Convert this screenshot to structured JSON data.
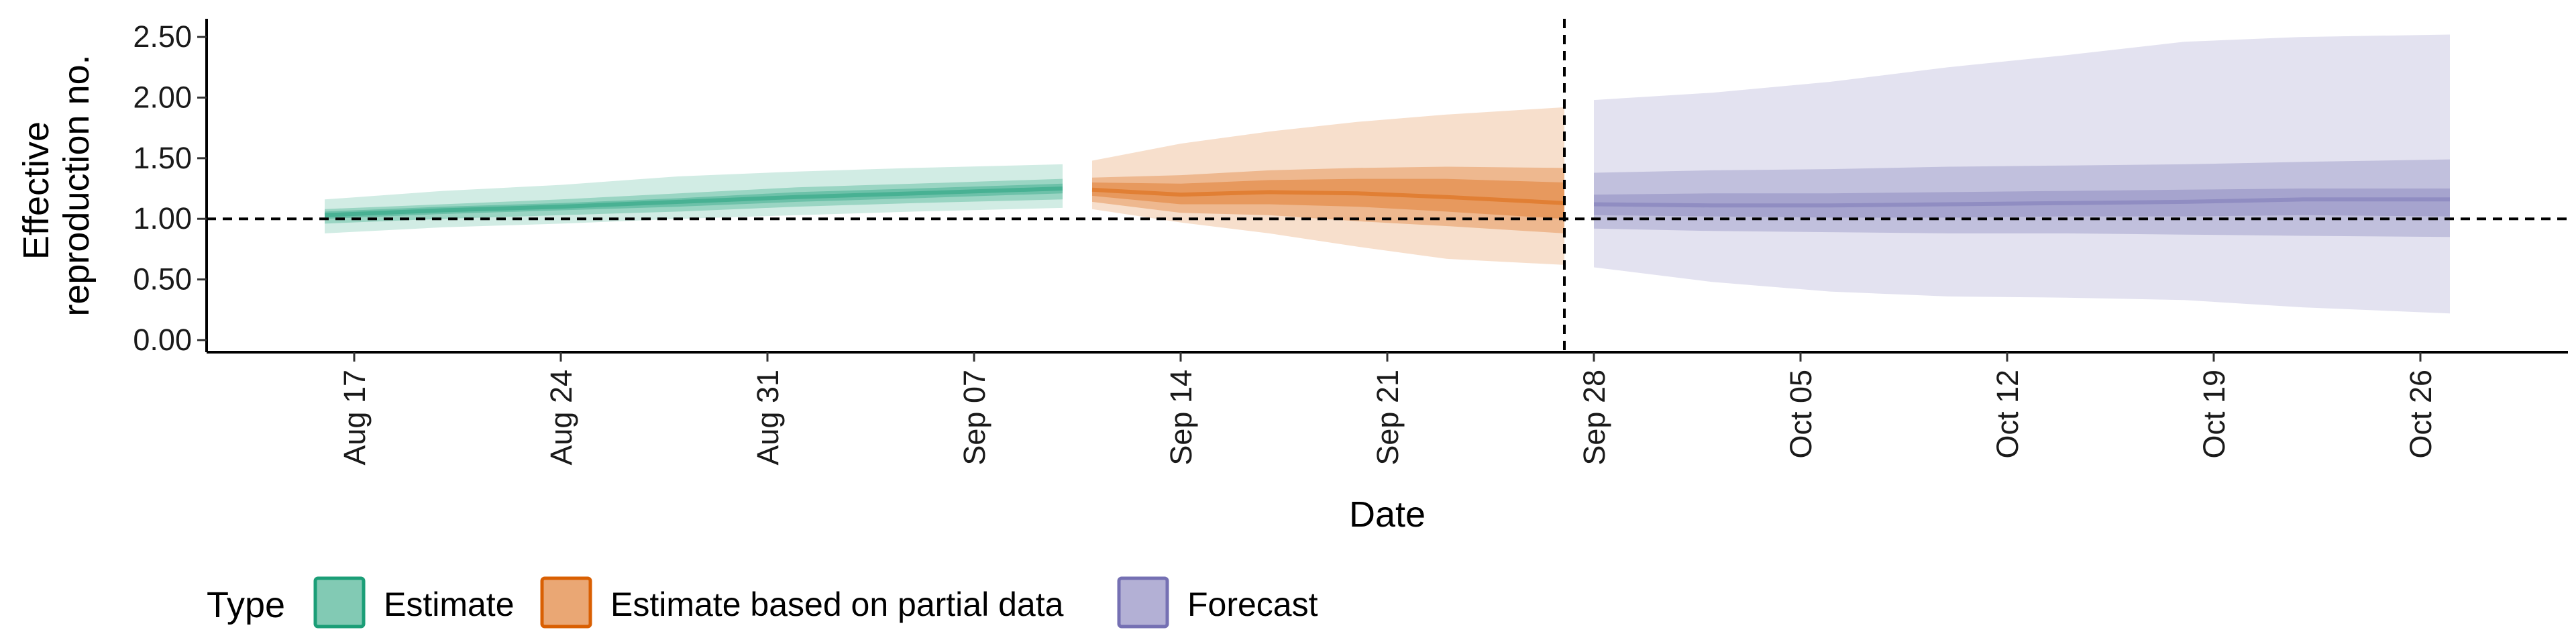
{
  "chart_data": {
    "type": "area",
    "title": "",
    "xlabel": "Date",
    "ylabel_lines": [
      "Effective",
      "reproduction no."
    ],
    "ylim": [
      -0.1,
      2.65
    ],
    "y_ticks": [
      "0.00",
      "0.50",
      "1.00",
      "1.50",
      "2.00",
      "2.50"
    ],
    "x_ticks": [
      {
        "date": "2020-08-17",
        "label": "Aug 17"
      },
      {
        "date": "2020-08-24",
        "label": "Aug 24"
      },
      {
        "date": "2020-08-31",
        "label": "Aug 31"
      },
      {
        "date": "2020-09-07",
        "label": "Sep 07"
      },
      {
        "date": "2020-09-14",
        "label": "Sep 14"
      },
      {
        "date": "2020-09-21",
        "label": "Sep 21"
      },
      {
        "date": "2020-09-28",
        "label": "Sep 28"
      },
      {
        "date": "2020-10-05",
        "label": "Oct 05"
      },
      {
        "date": "2020-10-12",
        "label": "Oct 12"
      },
      {
        "date": "2020-10-19",
        "label": "Oct 19"
      },
      {
        "date": "2020-10-26",
        "label": "Oct 26"
      }
    ],
    "xlim": [
      "2020-08-12",
      "2020-10-31"
    ],
    "reference_hline": 1.0,
    "reference_vline": "2020-09-27",
    "legend": {
      "title": "Type",
      "position": "bottom-left",
      "items": [
        "Estimate",
        "Estimate based on partial data",
        "Forecast"
      ]
    },
    "series": [
      {
        "name": "Estimate",
        "color": "#1b9e77",
        "x": [
          "2020-08-16",
          "2020-08-20",
          "2020-08-24",
          "2020-08-28",
          "2020-09-01",
          "2020-09-05",
          "2020-09-10"
        ],
        "median": [
          1.03,
          1.07,
          1.1,
          1.14,
          1.18,
          1.21,
          1.25
        ],
        "lower_25": [
          1.0,
          1.04,
          1.07,
          1.1,
          1.14,
          1.17,
          1.21
        ],
        "upper_25": [
          1.06,
          1.1,
          1.13,
          1.17,
          1.22,
          1.25,
          1.29
        ],
        "lower_50": [
          0.96,
          1.0,
          1.03,
          1.06,
          1.1,
          1.13,
          1.16
        ],
        "upper_50": [
          1.08,
          1.12,
          1.16,
          1.21,
          1.26,
          1.29,
          1.33
        ],
        "lower_90": [
          0.88,
          0.93,
          0.96,
          1.0,
          1.03,
          1.06,
          1.09
        ],
        "upper_90": [
          1.16,
          1.23,
          1.28,
          1.35,
          1.39,
          1.42,
          1.45
        ]
      },
      {
        "name": "Estimate based on partial data",
        "color": "#d95f02",
        "x": [
          "2020-09-11",
          "2020-09-14",
          "2020-09-17",
          "2020-09-20",
          "2020-09-23",
          "2020-09-27"
        ],
        "median": [
          1.24,
          1.2,
          1.22,
          1.21,
          1.18,
          1.13
        ],
        "lower_25": [
          1.19,
          1.12,
          1.12,
          1.1,
          1.06,
          1.0
        ],
        "upper_25": [
          1.3,
          1.29,
          1.32,
          1.33,
          1.33,
          1.3
        ],
        "lower_50": [
          1.14,
          1.05,
          1.03,
          0.98,
          0.94,
          0.88
        ],
        "upper_50": [
          1.34,
          1.36,
          1.4,
          1.42,
          1.43,
          1.42
        ],
        "lower_90": [
          1.08,
          0.97,
          0.88,
          0.77,
          0.67,
          0.62
        ],
        "upper_90": [
          1.48,
          1.62,
          1.72,
          1.8,
          1.86,
          1.92
        ]
      },
      {
        "name": "Forecast",
        "color": "#7570b3",
        "x": [
          "2020-09-28",
          "2020-10-02",
          "2020-10-06",
          "2020-10-10",
          "2020-10-14",
          "2020-10-18",
          "2020-10-22",
          "2020-10-27"
        ],
        "median": [
          1.12,
          1.11,
          1.11,
          1.12,
          1.13,
          1.14,
          1.16,
          1.16
        ],
        "lower_25": [
          1.03,
          1.02,
          1.01,
          1.01,
          1.02,
          1.02,
          1.03,
          1.02
        ],
        "upper_25": [
          1.2,
          1.21,
          1.21,
          1.22,
          1.23,
          1.24,
          1.25,
          1.25
        ],
        "lower_50": [
          0.92,
          0.9,
          0.89,
          0.88,
          0.88,
          0.87,
          0.86,
          0.85
        ],
        "upper_50": [
          1.38,
          1.4,
          1.41,
          1.43,
          1.44,
          1.45,
          1.47,
          1.49
        ],
        "lower_90": [
          0.6,
          0.48,
          0.4,
          0.36,
          0.35,
          0.33,
          0.27,
          0.22
        ],
        "upper_90": [
          1.98,
          2.04,
          2.13,
          2.25,
          2.35,
          2.46,
          2.5,
          2.52
        ]
      }
    ]
  }
}
